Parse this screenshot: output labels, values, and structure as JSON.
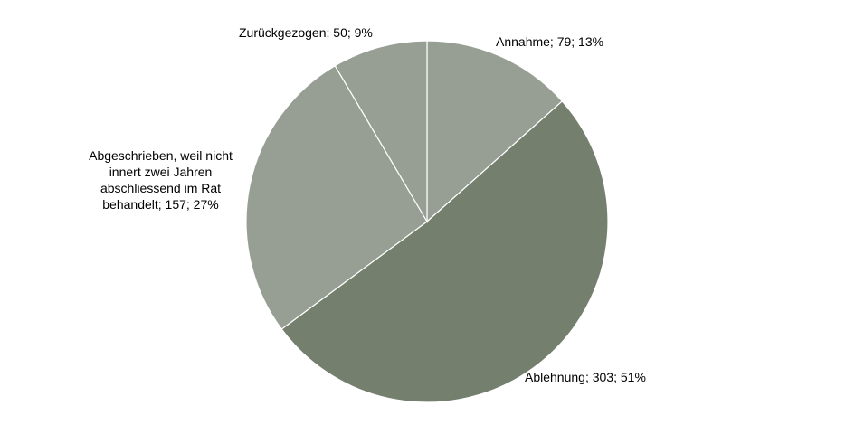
{
  "chart_data": {
    "type": "pie",
    "start_angle_deg": 0,
    "direction": "clockwise",
    "slices": [
      {
        "label": "Annahme",
        "value": 79,
        "percent": "13%",
        "color": "#979f94",
        "display": "Annahme; 79; 13%"
      },
      {
        "label": "Ablehnung",
        "value": 303,
        "percent": "51%",
        "color": "#757f6e",
        "display": "Ablehnung; 303; 51%"
      },
      {
        "label": "Abgeschrieben, weil nicht innert zwei Jahren abschliessend im Rat behandelt",
        "value": 157,
        "percent": "27%",
        "color": "#979f94",
        "display": "Abgeschrieben, weil nicht\ninnert zwei Jahren\nabschliessend im Rat\nbehandelt; 157; 27%"
      },
      {
        "label": "Zurückgezogen",
        "value": 50,
        "percent": "9%",
        "color": "#979f94",
        "display": "Zurückgezogen; 50; 9%"
      }
    ],
    "slice_border_color": "#ffffff"
  }
}
